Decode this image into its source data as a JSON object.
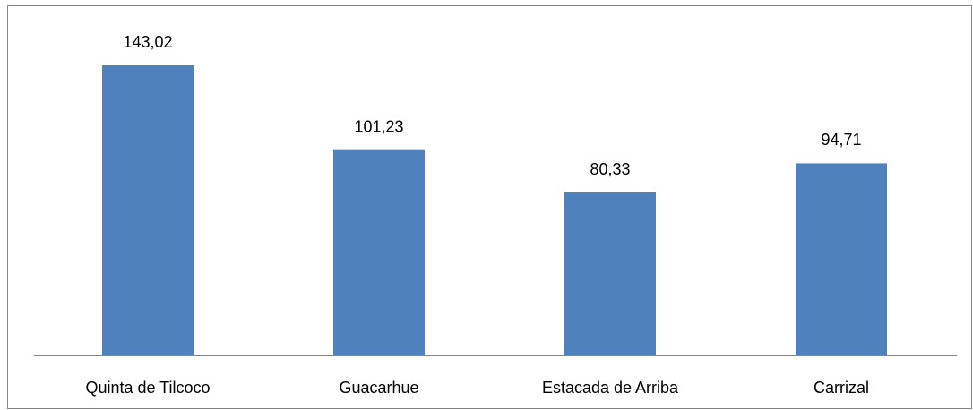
{
  "chart_data": {
    "type": "bar",
    "categories": [
      "Quinta de Tilcoco",
      "Guacarhue",
      "Estacada de Arriba",
      "Carrizal"
    ],
    "values": [
      143.02,
      101.23,
      80.33,
      94.71
    ],
    "value_labels": [
      "143,02",
      "101,23",
      "80,33",
      "94,71"
    ],
    "color": "#4f81bd"
  }
}
